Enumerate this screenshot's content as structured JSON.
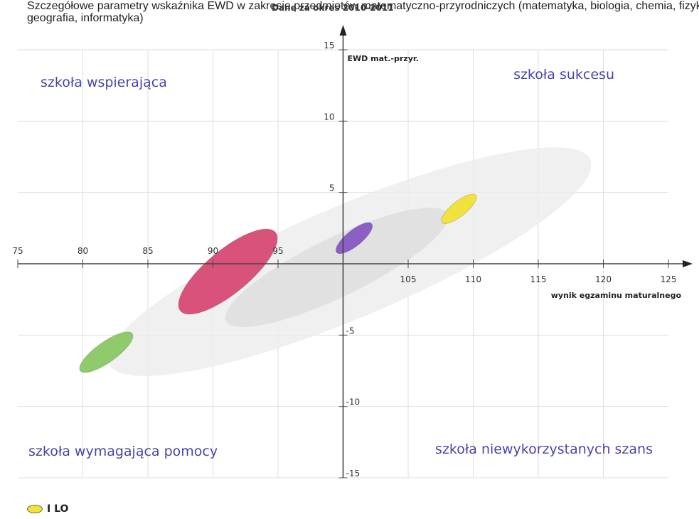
{
  "header": {
    "line1": "Szczegółowe parametry wskaźnika EWD w zakresie przedmiotów matematyczno-przyrodniczych (matematyka, biologia, chemia, fizyka,",
    "line2": "geografia, informatyka)",
    "period": "Dane za okres 2010-2011"
  },
  "legend": {
    "label": "I LO",
    "color": "#f2e23e"
  },
  "chart_data": {
    "type": "scatter",
    "title": "",
    "xlabel": "wynik egzaminu maturalnego",
    "ylabel": "EWD mat.-przyr.",
    "xlim": [
      75,
      125
    ],
    "ylim": [
      -15,
      15
    ],
    "x_ticks": [
      75,
      80,
      85,
      90,
      95,
      105,
      110,
      115,
      120,
      125
    ],
    "y_ticks": [
      15,
      10,
      5,
      -5,
      -10,
      -15
    ],
    "grid": true,
    "quadrants": {
      "top_left": "szkoła wspierająca",
      "top_right": "szkoła sukcesu",
      "bottom_left": "szkoła wymagająca pomocy",
      "bottom_right": "szkoła niewykorzystanych szans"
    },
    "background_regions": [
      {
        "x": [
          82,
          119
        ],
        "y": [
          -7,
          7.3
        ],
        "color": "#ececec"
      },
      {
        "x": [
          91,
          108
        ],
        "y": [
          -4,
          3.5
        ],
        "color": "#dcdcdc"
      }
    ],
    "ellipses": [
      {
        "x": [
          79.8,
          83.8
        ],
        "y": [
          -7.5,
          -4.9
        ],
        "color": "#8fcb6c"
      },
      {
        "x": [
          87.5,
          94.8
        ],
        "y": [
          -3.3,
          2.2
        ],
        "color": "#d9527a"
      },
      {
        "x": [
          99.5,
          102.2
        ],
        "y": [
          0.8,
          2.8
        ],
        "color": "#8b5fc3"
      },
      {
        "x": [
          107.6,
          110.2
        ],
        "y": [
          2.9,
          4.8
        ],
        "color": "#f2e23e",
        "label": "I LO"
      }
    ]
  }
}
